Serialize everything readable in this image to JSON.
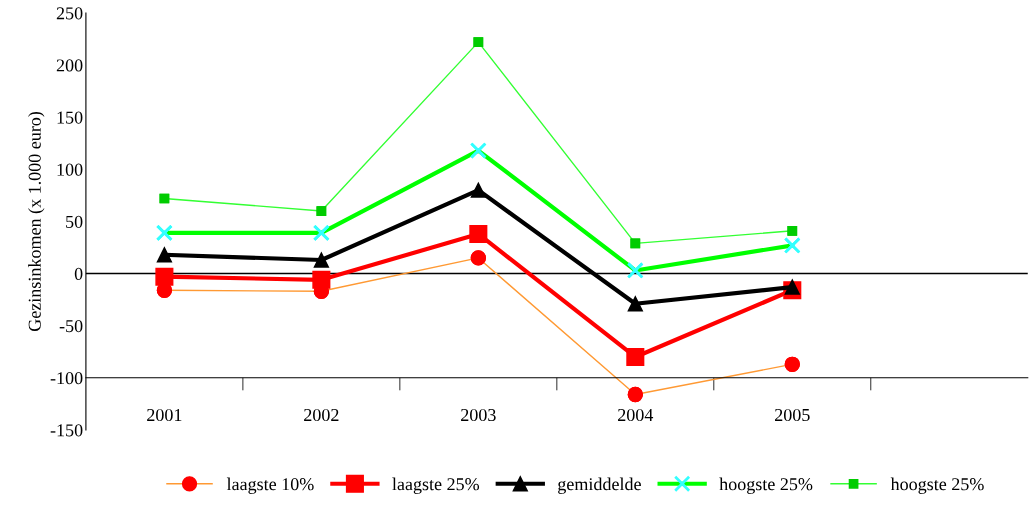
{
  "chart_data": {
    "type": "line",
    "ylabel": "Gezinsinkomen (x 1.000 euro)",
    "categories": [
      "2001",
      "2002",
      "2003",
      "2004",
      "2005",
      null
    ],
    "series": [
      {
        "name": "laagste 10%",
        "color": "#ff9933",
        "colors": [
          "#ff0000",
          "#ff0000",
          "#ff0000",
          "#ff0000",
          "#ff0000",
          "#ff0000"
        ],
        "marker": "circle",
        "values": [
          -16,
          -17,
          15,
          -116,
          -87,
          null
        ]
      },
      {
        "name": "laagste 25%",
        "color": "#ff0000",
        "marker": "square",
        "values": [
          -3,
          -6,
          38,
          -80,
          -16,
          null
        ]
      },
      {
        "name": "gemiddelde",
        "color": "#000000",
        "marker": "triangle",
        "values": [
          18,
          13,
          80,
          -29,
          -13,
          null
        ]
      },
      {
        "name": "hoogste 25%",
        "color": "#00ff00",
        "colors": [
          "#33ffff",
          "#33ffff",
          "#33ffff",
          "#33ffff",
          "#33ffff",
          "#33ffff"
        ],
        "marker": "cross",
        "values": [
          39,
          39,
          118,
          3,
          27,
          null
        ]
      },
      {
        "name": "hoogste 25%",
        "color": "#33ff33",
        "colors": [
          "#00cc00",
          "#00cc00",
          "#00cc00",
          "#00cc00",
          "#00cc00",
          "#00cc00"
        ],
        "marker": "square",
        "values": [
          72,
          60,
          222,
          29,
          41,
          null
        ]
      }
    ],
    "ylim": [
      -150,
      250
    ],
    "yticks": [
      -150,
      -100,
      -50,
      0,
      50,
      100,
      150,
      200,
      250
    ],
    "ref_lines": [
      {
        "axis": "y",
        "value": 0,
        "color": "#000000"
      }
    ],
    "grid": false,
    "legend": "bottom"
  }
}
